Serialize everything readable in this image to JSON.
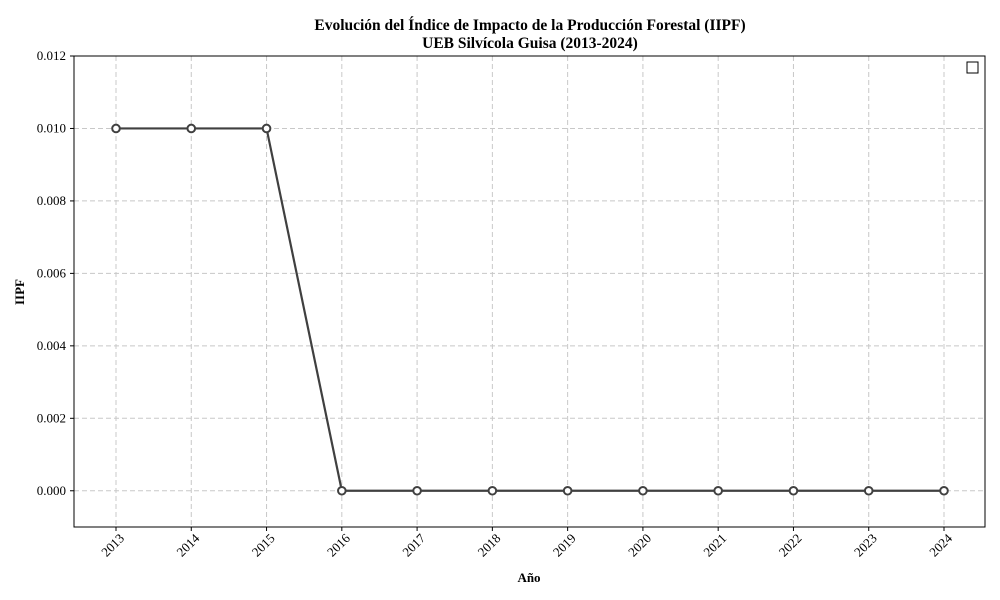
{
  "chart_data": {
    "type": "line",
    "title_line1": "Evolución del Índice de Impacto de la Producción Forestal (IIPF)",
    "title_line2": "UEB Silvícola Guisa (2013-2024)",
    "xlabel": "Año",
    "ylabel": "IIPF",
    "x": [
      "2013",
      "2014",
      "2015",
      "2016",
      "2017",
      "2018",
      "2019",
      "2020",
      "2021",
      "2022",
      "2023",
      "2024"
    ],
    "y_ticks": [
      "0.000",
      "0.002",
      "0.004",
      "0.006",
      "0.008",
      "0.010",
      "0.012"
    ],
    "ylim": [
      -0.001,
      0.012
    ],
    "series": [
      {
        "values": [
          0.01,
          0.01,
          0.01,
          0.0,
          0.0,
          0.0,
          0.0,
          0.0,
          0.0,
          0.0,
          0.0,
          0.0
        ],
        "color": "#404040",
        "marker": "circle-open"
      }
    ],
    "grid": true,
    "legend": "top-right",
    "colors": {
      "line": "#404040",
      "grid": "#c8c8c8"
    }
  }
}
